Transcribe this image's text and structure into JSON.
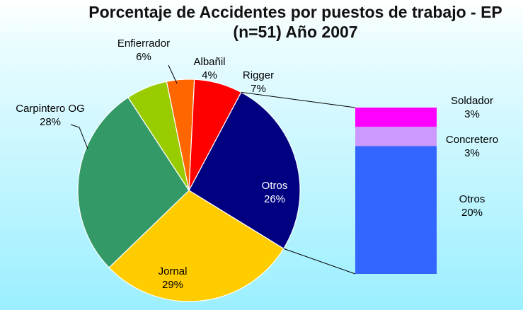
{
  "title": {
    "line1": "Porcentaje de Accidentes por puestos de trabajo - EP",
    "line2": "(n=51) Año 2007"
  },
  "chart_data": {
    "type": "bar-of-pie",
    "title": "Porcentaje de Accidentes por puestos de trabajo - EP (n=51) Año 2007",
    "pie": {
      "slices": [
        {
          "label": "Otros",
          "pct_text": "26%",
          "value": 26,
          "color": "#000080"
        },
        {
          "label": "Jornal",
          "pct_text": "29%",
          "value": 29,
          "color": "#ffcc00"
        },
        {
          "label": "Carpintero OG",
          "pct_text": "28%",
          "value": 28,
          "color": "#339966"
        },
        {
          "label": "Enfierrador",
          "pct_text": "6%",
          "value": 6,
          "color": "#99cc00"
        },
        {
          "label": "Albañil",
          "pct_text": "4%",
          "value": 4,
          "color": "#ff6600"
        },
        {
          "label": "Rigger",
          "pct_text": "7%",
          "value": 7,
          "color": "#ff0000"
        }
      ]
    },
    "bar": {
      "segments": [
        {
          "label": "Otros",
          "pct_text": "20%",
          "value": 20,
          "color": "#3366ff"
        },
        {
          "label": "Concretero",
          "pct_text": "3%",
          "value": 3,
          "color": "#cc99ff"
        },
        {
          "label": "Soldador",
          "pct_text": "3%",
          "value": 3,
          "color": "#ff00ff"
        }
      ]
    }
  }
}
